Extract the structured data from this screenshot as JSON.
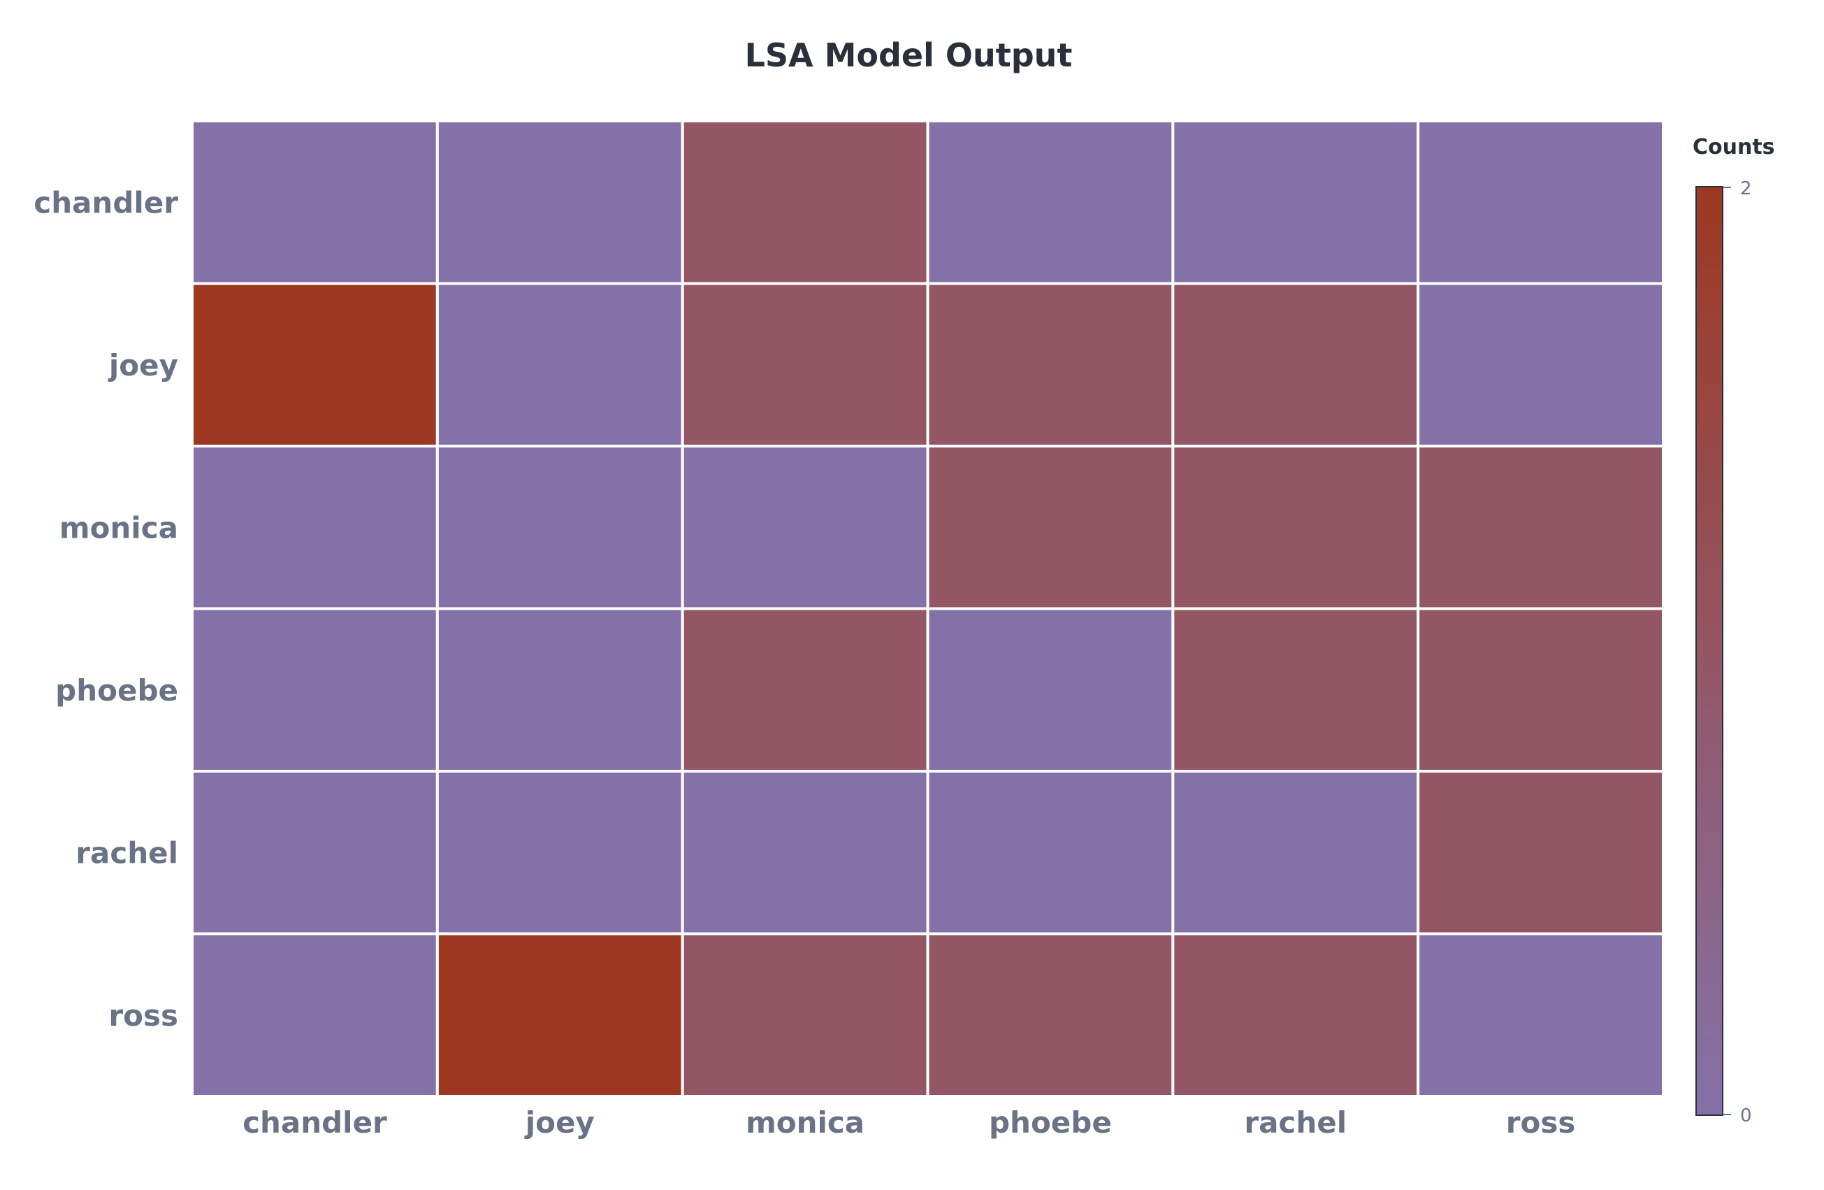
{
  "chart_data": {
    "type": "heatmap",
    "title": "LSA Model Output",
    "x_categories": [
      "chandler",
      "joey",
      "monica",
      "phoebe",
      "rachel",
      "ross"
    ],
    "y_categories": [
      "chandler",
      "joey",
      "monica",
      "phoebe",
      "rachel",
      "ross"
    ],
    "values": [
      [
        0,
        0,
        1,
        0,
        0,
        0
      ],
      [
        2,
        0,
        1,
        1,
        1,
        0
      ],
      [
        0,
        0,
        0,
        1,
        1,
        1
      ],
      [
        0,
        0,
        1,
        0,
        1,
        1
      ],
      [
        0,
        0,
        0,
        0,
        0,
        1
      ],
      [
        0,
        2,
        1,
        1,
        1,
        0
      ]
    ],
    "colorbar": {
      "title": "Counts",
      "min": 0,
      "max": 2,
      "tick_labels": [
        "2",
        "0"
      ],
      "colors": {
        "low": "#8471a8",
        "mid": "#935664",
        "high": "#9c3822"
      }
    },
    "grid": false,
    "legend": "right"
  }
}
